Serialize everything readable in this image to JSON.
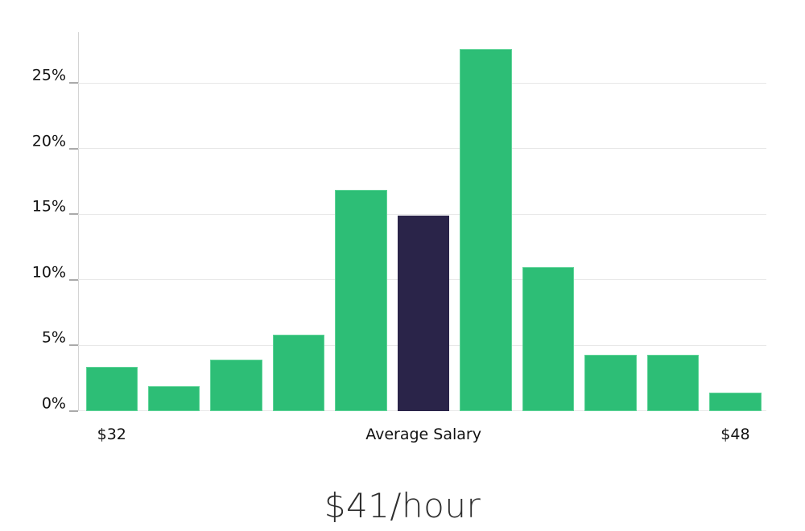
{
  "chart_data": {
    "type": "bar",
    "title": "",
    "xlabel": "",
    "ylabel": "",
    "ylim": [
      0,
      28.9
    ],
    "grid": true,
    "legend": false,
    "values": [
      3.4,
      1.9,
      3.9,
      5.8,
      16.9,
      14.9,
      27.6,
      11.0,
      4.3,
      4.3,
      1.4
    ],
    "highlight_index": 5,
    "y_ticks": [
      {
        "value": 0,
        "label": "0%"
      },
      {
        "value": 5,
        "label": "5%"
      },
      {
        "value": 10,
        "label": "10%"
      },
      {
        "value": 15,
        "label": "15%"
      },
      {
        "value": 20,
        "label": "20%"
      },
      {
        "value": 25,
        "label": "25%"
      }
    ],
    "x_labels": [
      {
        "bar_index": 0,
        "text": "$32"
      },
      {
        "bar_index": 5,
        "text": "Average Salary"
      },
      {
        "bar_index": 10,
        "text": "$48"
      }
    ],
    "annotation": "$41/hour",
    "colors": {
      "bar": "#2dbe76",
      "bar_edge": "#5fd498",
      "highlight_bar": "#2a2449",
      "highlight_edge": "#2a2449",
      "gridline": "#e8e8e8",
      "axis_line": "#d4d4d4",
      "tick": "#aaaaaa",
      "tick_label": "#121212",
      "annotation_text": "#2e2e2e"
    }
  }
}
